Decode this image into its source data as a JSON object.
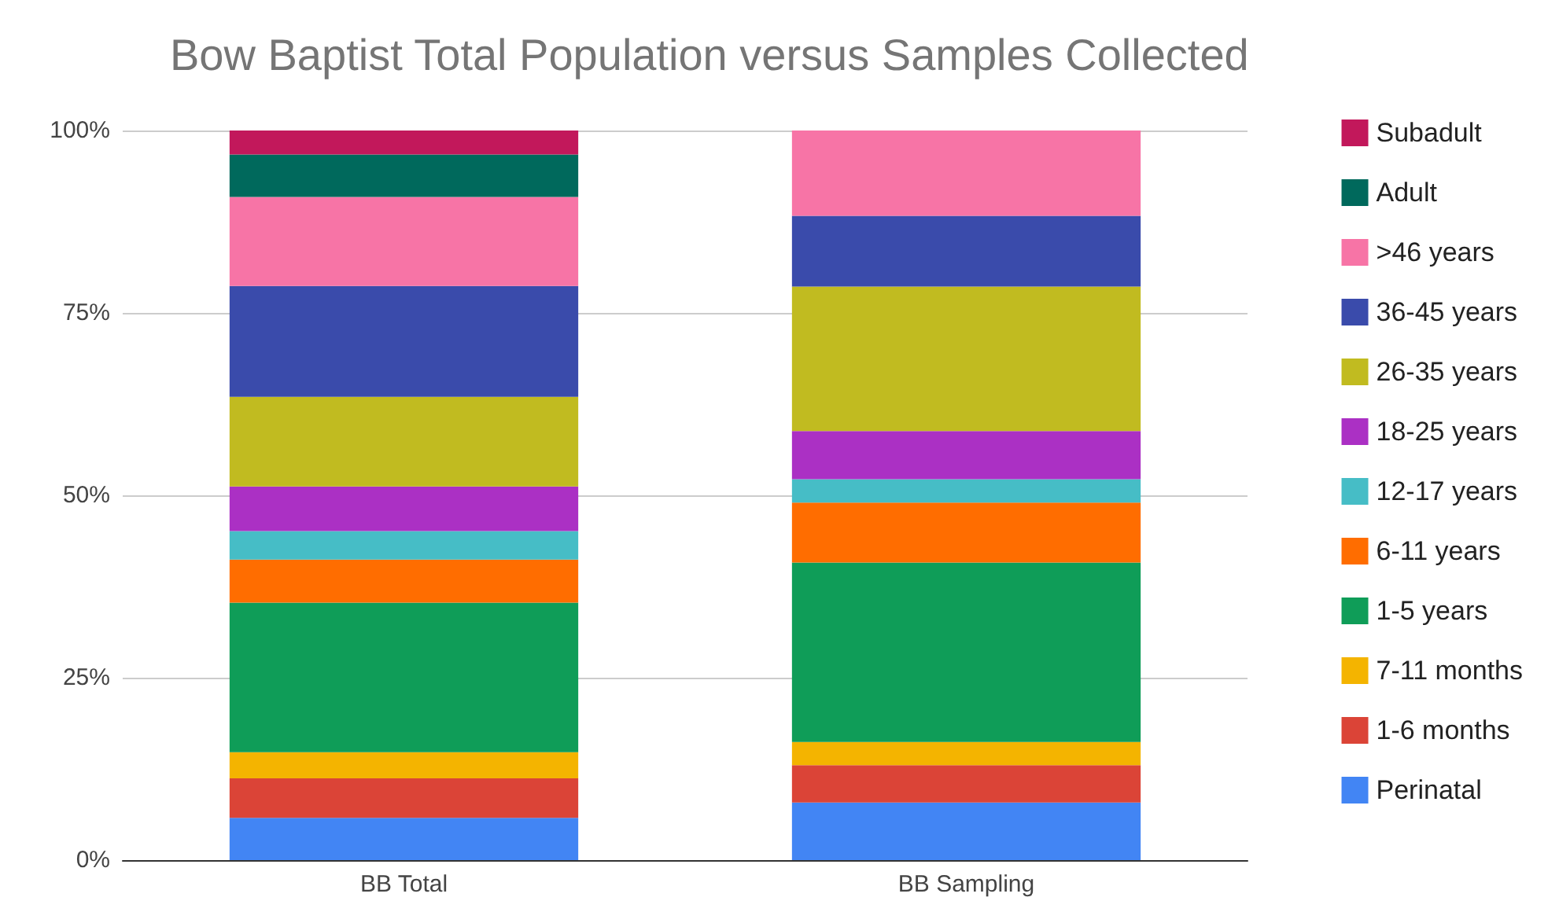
{
  "chart_data": {
    "type": "bar",
    "title": "Bow Baptist Total Population versus Samples Collected",
    "stacked": true,
    "categories": [
      "BB Total",
      "BB Sampling"
    ],
    "series": [
      {
        "name": "Perinatal",
        "color": "#4285f4",
        "values": [
          5.8,
          7.9
        ]
      },
      {
        "name": "1-6 months",
        "color": "#db4437",
        "values": [
          5.4,
          5.1
        ]
      },
      {
        "name": "7-11 months",
        "color": "#f4b400",
        "values": [
          3.6,
          3.2
        ]
      },
      {
        "name": "1-5 years",
        "color": "#0f9d58",
        "values": [
          20.5,
          24.6
        ]
      },
      {
        "name": "6-11 years",
        "color": "#ff6d00",
        "values": [
          5.9,
          8.2
        ]
      },
      {
        "name": "12-17 years",
        "color": "#46bdc6",
        "values": [
          3.9,
          3.2
        ]
      },
      {
        "name": "18-25 years",
        "color": "#ab30c4",
        "values": [
          6.1,
          6.6
        ]
      },
      {
        "name": "26-35 years",
        "color": "#c1bb20",
        "values": [
          12.3,
          19.8
        ]
      },
      {
        "name": "36-45 years",
        "color": "#3a4bab",
        "values": [
          15.2,
          9.7
        ]
      },
      {
        "name": ">46 years",
        "color": "#f774a6",
        "values": [
          12.2,
          11.7
        ]
      },
      {
        "name": "Adult",
        "color": "#00695c",
        "values": [
          5.8,
          0
        ]
      },
      {
        "name": "Subadult",
        "color": "#c2185b",
        "values": [
          3.3,
          0
        ]
      }
    ],
    "ylim": [
      0,
      100
    ],
    "yticks": [
      {
        "value": 0,
        "label": "0%"
      },
      {
        "value": 25,
        "label": "25%"
      },
      {
        "value": 50,
        "label": "50%"
      },
      {
        "value": 75,
        "label": "75%"
      },
      {
        "value": 100,
        "label": "100%"
      }
    ],
    "grid": "y",
    "legend": "right"
  }
}
